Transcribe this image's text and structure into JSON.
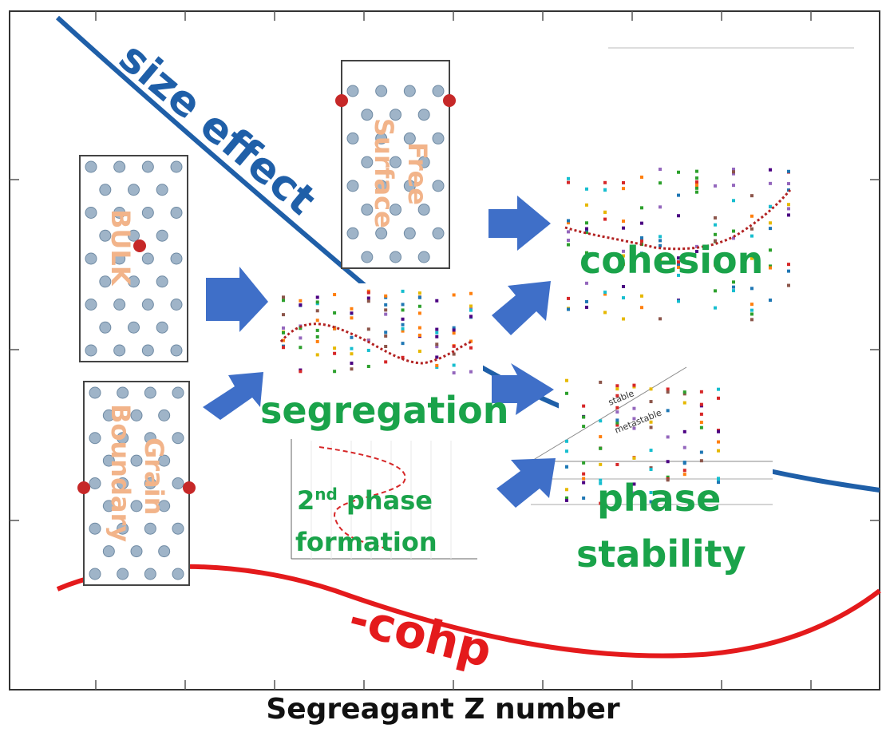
{
  "axis": {
    "xlabel": "Segreagant Z number"
  },
  "curves": {
    "size_effect": {
      "label": "size effect",
      "color": "#1f5fa8"
    },
    "cohp": {
      "label": "-cohp",
      "color": "#e41a1c"
    }
  },
  "panels": {
    "bulk": {
      "label": "BULK"
    },
    "free_surface": {
      "label_line1": "Free",
      "label_line2": "Surface"
    },
    "grain_boundary": {
      "label_line1": "Grain",
      "label_line2": "Boundary"
    }
  },
  "outcomes": {
    "segregation": "segregation",
    "cohesion": "cohesion",
    "second_phase_line1_num": "2",
    "second_phase_line1_sup": "nd",
    "second_phase_line1_rest": " phase",
    "second_phase_line2": "formation",
    "phase_stability_line1": "phase",
    "phase_stability_line2": "stability",
    "stable": "stable",
    "metastable": "metastable"
  },
  "colors": {
    "arrow": "#3f6fc8",
    "label_orange": "#f2b48a",
    "label_green": "#1aa34a",
    "atom_gray": "#9fb4c8",
    "atom_red": "#c62828"
  }
}
